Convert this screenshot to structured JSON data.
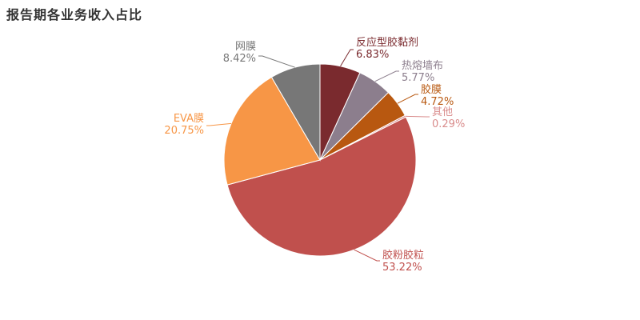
{
  "chart_data": {
    "type": "pie",
    "title": "报告期各业务收入占比",
    "slices": [
      {
        "name": "反应型胶黏剂",
        "label": "6.83%",
        "value": 6.83,
        "color": "#7a2a2e"
      },
      {
        "name": "热熔墙布",
        "label": "5.77%",
        "value": 5.77,
        "color": "#8c7e8d"
      },
      {
        "name": "胶膜",
        "label": "4.72%",
        "value": 4.72,
        "color": "#b85810"
      },
      {
        "name": "其他",
        "label": "0.29%",
        "value": 0.29,
        "color": "#d98c8c"
      },
      {
        "name": "胶粉胶粒",
        "label": "53.22%",
        "value": 53.22,
        "color": "#c0504d"
      },
      {
        "name": "EVA膜",
        "label": "20.75%",
        "value": 20.75,
        "color": "#f79646"
      },
      {
        "name": "网膜",
        "label": "8.42%",
        "value": 8.42,
        "color": "#777777"
      }
    ],
    "start_angle_deg": 0,
    "direction": "clockwise"
  }
}
